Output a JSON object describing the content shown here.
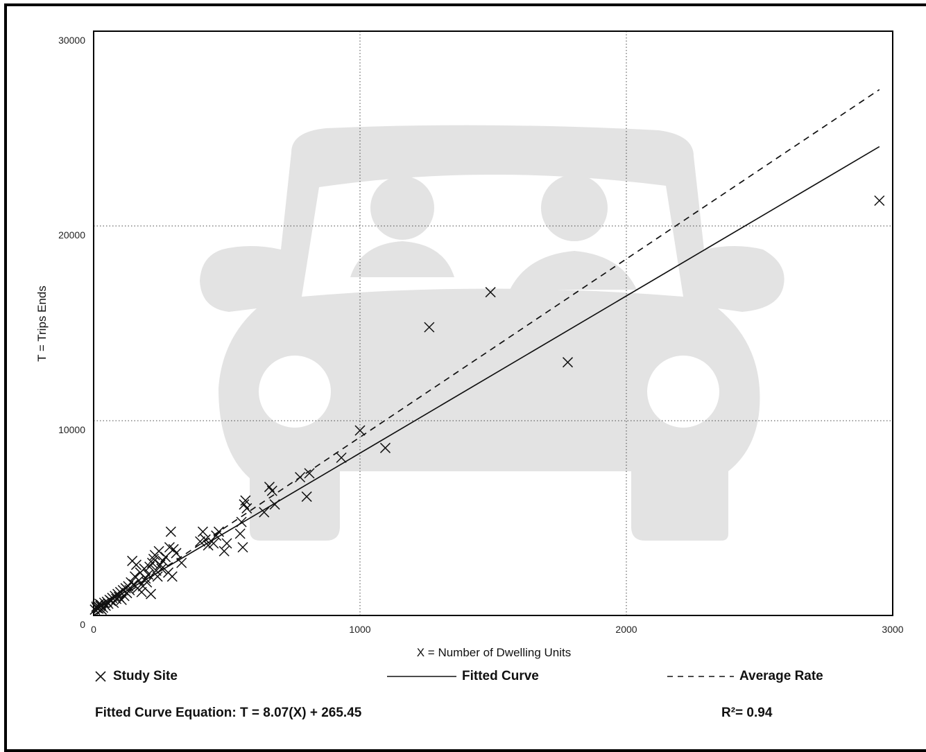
{
  "chart_data": {
    "type": "scatter",
    "title": "",
    "xlabel": "X = Number of Dwelling Units",
    "ylabel": "T = Trips Ends",
    "xlim": [
      0,
      3000
    ],
    "ylim": [
      0,
      30000
    ],
    "x_ticks": [
      "0",
      "1000",
      "2000",
      "3000"
    ],
    "y_ticks": [
      "0",
      "10000",
      "20000",
      "30000"
    ],
    "grid": "dotted",
    "background_watermark": "car-icon",
    "series": [
      {
        "name": "Study Site",
        "marker": "x",
        "points": [
          [
            5,
            300
          ],
          [
            10,
            450
          ],
          [
            12,
            380
          ],
          [
            15,
            500
          ],
          [
            18,
            350
          ],
          [
            20,
            420
          ],
          [
            22,
            600
          ],
          [
            25,
            480
          ],
          [
            28,
            550
          ],
          [
            30,
            300
          ],
          [
            35,
            400
          ],
          [
            40,
            650
          ],
          [
            45,
            500
          ],
          [
            50,
            700
          ],
          [
            55,
            600
          ],
          [
            60,
            800
          ],
          [
            65,
            750
          ],
          [
            70,
            900
          ],
          [
            75,
            650
          ],
          [
            80,
            1000
          ],
          [
            85,
            850
          ],
          [
            90,
            1100
          ],
          [
            95,
            950
          ],
          [
            100,
            1200
          ],
          [
            105,
            800
          ],
          [
            110,
            1300
          ],
          [
            115,
            1000
          ],
          [
            120,
            1400
          ],
          [
            125,
            1150
          ],
          [
            130,
            1500
          ],
          [
            135,
            1300
          ],
          [
            140,
            1700
          ],
          [
            145,
            2800
          ],
          [
            150,
            1600
          ],
          [
            155,
            2000
          ],
          [
            160,
            2600
          ],
          [
            165,
            1400
          ],
          [
            170,
            1800
          ],
          [
            175,
            2200
          ],
          [
            180,
            1200
          ],
          [
            185,
            1500
          ],
          [
            190,
            2400
          ],
          [
            195,
            1900
          ],
          [
            200,
            1700
          ],
          [
            205,
            2100
          ],
          [
            210,
            2500
          ],
          [
            215,
            1100
          ],
          [
            220,
            2700
          ],
          [
            225,
            2900
          ],
          [
            230,
            3100
          ],
          [
            235,
            2300
          ],
          [
            240,
            2000
          ],
          [
            245,
            3300
          ],
          [
            250,
            2600
          ],
          [
            255,
            2400
          ],
          [
            260,
            2800
          ],
          [
            270,
            3000
          ],
          [
            280,
            2200
          ],
          [
            285,
            3500
          ],
          [
            290,
            4300
          ],
          [
            295,
            2000
          ],
          [
            300,
            3400
          ],
          [
            310,
            3200
          ],
          [
            330,
            2700
          ],
          [
            400,
            3800
          ],
          [
            410,
            4300
          ],
          [
            420,
            3900
          ],
          [
            430,
            3600
          ],
          [
            450,
            3700
          ],
          [
            460,
            4100
          ],
          [
            470,
            4300
          ],
          [
            490,
            3300
          ],
          [
            500,
            3700
          ],
          [
            550,
            4200
          ],
          [
            555,
            4800
          ],
          [
            560,
            3500
          ],
          [
            565,
            5700
          ],
          [
            570,
            5900
          ],
          [
            575,
            5500
          ],
          [
            640,
            5300
          ],
          [
            660,
            6600
          ],
          [
            670,
            6400
          ],
          [
            680,
            5700
          ],
          [
            775,
            7100
          ],
          [
            800,
            6100
          ],
          [
            810,
            7300
          ],
          [
            930,
            8100
          ],
          [
            1000,
            9500
          ],
          [
            1095,
            8600
          ],
          [
            1260,
            14800
          ],
          [
            1490,
            16600
          ],
          [
            1780,
            13000
          ],
          [
            2950,
            21300
          ]
        ]
      },
      {
        "name": "Fitted Curve",
        "style": "solid",
        "points": [
          [
            0,
            265.45
          ],
          [
            2950,
            24071.95
          ]
        ]
      },
      {
        "name": "Average Rate",
        "style": "dashed",
        "points": [
          [
            0,
            0
          ],
          [
            2950,
            27000
          ]
        ]
      }
    ],
    "legend_placement": "bottom",
    "equation": "Fitted Curve Equation: T = 8.07(X) + 265.45",
    "r_squared": "R²= 0.94"
  },
  "legend": {
    "study_site": "Study Site",
    "fitted_curve": "Fitted Curve",
    "average_rate": "Average Rate"
  },
  "footer": {
    "equation": "Fitted Curve Equation: T = 8.07(X) + 265.45",
    "r_squared": "R²= 0.94"
  },
  "colors": {
    "watermark": "#e3e3e3",
    "ink": "#111111"
  }
}
